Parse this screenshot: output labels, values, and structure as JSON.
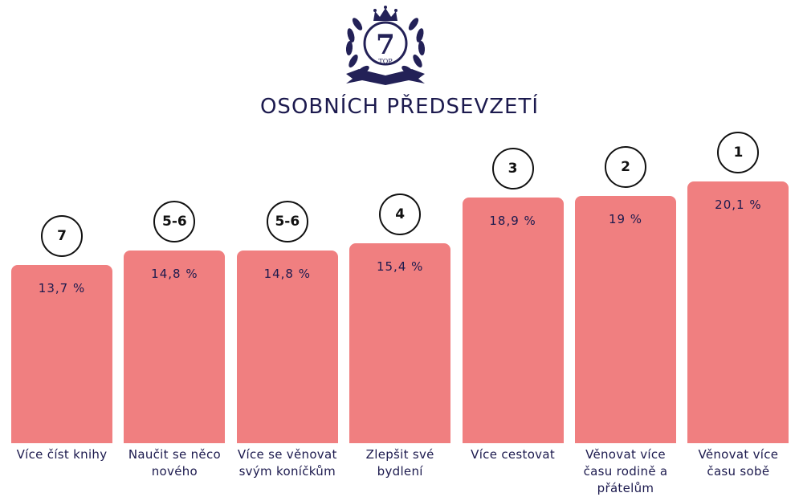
{
  "logo": {
    "number": "7",
    "label": "TOP"
  },
  "chart_data": {
    "type": "bar",
    "title": "OSOBNÍCH PŘEDSEVZETÍ",
    "categories": [
      "Více číst knihy",
      "Naučit se něco nového",
      "Více se věnovat svým koníčkům",
      "Zlepšit své bydlení",
      "Více cestovat",
      "Věnovat více času rodině a přátelům",
      "Věnovat více času sobě"
    ],
    "values": [
      13.7,
      14.8,
      14.8,
      15.4,
      18.9,
      19.0,
      20.1
    ],
    "value_labels": [
      "13,7 %",
      "14,8 %",
      "14,8 %",
      "15,4 %",
      "18,9 %",
      "19 %",
      "20,1 %"
    ],
    "ranks": [
      "7",
      "5-6",
      "5-6",
      "4",
      "3",
      "2",
      "1"
    ],
    "bar_color": "#f07f80",
    "grid": false,
    "legend": "none"
  }
}
